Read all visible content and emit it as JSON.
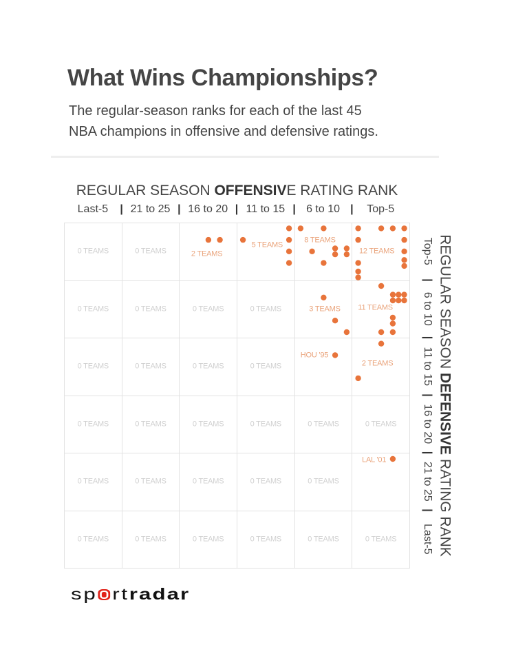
{
  "header": {
    "title": "What Wins Championships?",
    "subtitle_line1": "The regular-season ranks for each of the last 45",
    "subtitle_line2": "NBA champions in offensive and defensive ratings."
  },
  "chart_data": {
    "type": "scatter",
    "title": "What Wins Championships?",
    "subtitle": "The regular-season ranks for each of the last 45 NBA champions in offensive and defensive ratings.",
    "xlabel": {
      "pre": "REGULAR SEASON ",
      "bold": "OFFENSIV",
      "post": "E RATING RANK"
    },
    "ylabel": {
      "pre": "REGULAR SEASON ",
      "bold": "DEFENSIVE",
      "post": " RATING RANK"
    },
    "x_tick_labels": [
      "Last-5",
      "21 to 25",
      "16 to 20",
      "11 to 15",
      "6 to 10",
      "Top-5"
    ],
    "y_tick_labels": [
      "Top-5",
      "6 to 10",
      "11 to 15",
      "16 to 20",
      "21 to 25",
      "Last-5"
    ],
    "separator": "|",
    "x_range": [
      30,
      1
    ],
    "y_range": [
      1,
      30
    ],
    "x_unit": "regular season offensive rating rank",
    "y_unit": "regular season defensive rating rank",
    "grid": true,
    "cell_counts": [
      [
        0,
        0,
        2,
        5,
        8,
        12
      ],
      [
        0,
        0,
        0,
        0,
        3,
        11
      ],
      [
        0,
        0,
        0,
        0,
        1,
        2
      ],
      [
        0,
        0,
        0,
        0,
        0,
        0
      ],
      [
        0,
        0,
        0,
        0,
        0,
        1
      ],
      [
        0,
        0,
        0,
        0,
        0,
        0
      ]
    ],
    "cell_labels": [
      [
        "0 TEAMS",
        "0 TEAMS",
        "2 TEAMS",
        "5 TEAMS",
        "8 TEAMS",
        "12 TEAMS"
      ],
      [
        "0 TEAMS",
        "0 TEAMS",
        "0 TEAMS",
        "0 TEAMS",
        "3 TEAMS",
        "11 TEAMS"
      ],
      [
        "0 TEAMS",
        "0 TEAMS",
        "0 TEAMS",
        "0 TEAMS",
        "HOU '95",
        "2 TEAMS"
      ],
      [
        "0 TEAMS",
        "0 TEAMS",
        "0 TEAMS",
        "0 TEAMS",
        "0 TEAMS",
        "0 TEAMS"
      ],
      [
        "0 TEAMS",
        "0 TEAMS",
        "0 TEAMS",
        "0 TEAMS",
        "0 TEAMS",
        "LAL '01"
      ],
      [
        "0 TEAMS",
        "0 TEAMS",
        "0 TEAMS",
        "0 TEAMS",
        "0 TEAMS",
        "0 TEAMS"
      ]
    ],
    "points": [
      {
        "off": 18,
        "def": 2,
        "n": 1
      },
      {
        "off": 17,
        "def": 2,
        "n": 1
      },
      {
        "off": 15,
        "def": 2,
        "n": 1
      },
      {
        "off": 11,
        "def": 1,
        "n": 1
      },
      {
        "off": 11,
        "def": 2,
        "n": 1
      },
      {
        "off": 11,
        "def": 3,
        "n": 1
      },
      {
        "off": 11,
        "def": 4,
        "n": 1
      },
      {
        "off": 10,
        "def": 1,
        "n": 1
      },
      {
        "off": 8,
        "def": 1,
        "n": 1
      },
      {
        "off": 9,
        "def": 3,
        "n": 1
      },
      {
        "off": 7,
        "def": 3,
        "n": 2
      },
      {
        "off": 6,
        "def": 3,
        "n": 2
      },
      {
        "off": 8,
        "def": 4,
        "n": 1
      },
      {
        "off": 5,
        "def": 1,
        "n": 1
      },
      {
        "off": 3,
        "def": 1,
        "n": 1
      },
      {
        "off": 2,
        "def": 1,
        "n": 1
      },
      {
        "off": 1,
        "def": 1,
        "n": 1
      },
      {
        "off": 5,
        "def": 2,
        "n": 1
      },
      {
        "off": 1,
        "def": 2,
        "n": 1
      },
      {
        "off": 1,
        "def": 3,
        "n": 1
      },
      {
        "off": 5,
        "def": 4,
        "n": 1
      },
      {
        "off": 1,
        "def": 4,
        "n": 2
      },
      {
        "off": 5,
        "def": 5,
        "n": 2
      },
      {
        "off": 8,
        "def": 7,
        "n": 1
      },
      {
        "off": 7,
        "def": 9,
        "n": 1
      },
      {
        "off": 6,
        "def": 10,
        "n": 1
      },
      {
        "off": 3,
        "def": 6,
        "n": 1
      },
      {
        "off": 1.5,
        "def": 7,
        "n": 6
      },
      {
        "off": 2,
        "def": 9,
        "n": 2
      },
      {
        "off": 3,
        "def": 10,
        "n": 1
      },
      {
        "off": 2,
        "def": 10,
        "n": 1
      },
      {
        "off": 7,
        "def": 12,
        "n": 1
      },
      {
        "off": 3,
        "def": 11,
        "n": 1
      },
      {
        "off": 5,
        "def": 14,
        "n": 1
      },
      {
        "off": 2,
        "def": 21,
        "n": 1
      }
    ]
  },
  "colors": {
    "dot": "#e8743b",
    "count_label": "#eaa47c",
    "zero_label": "#d0d0d0",
    "logo_red": "#e2231a"
  },
  "branding": {
    "logo_part1": "sp",
    "logo_part2": "rt",
    "logo_part3": "radar"
  }
}
